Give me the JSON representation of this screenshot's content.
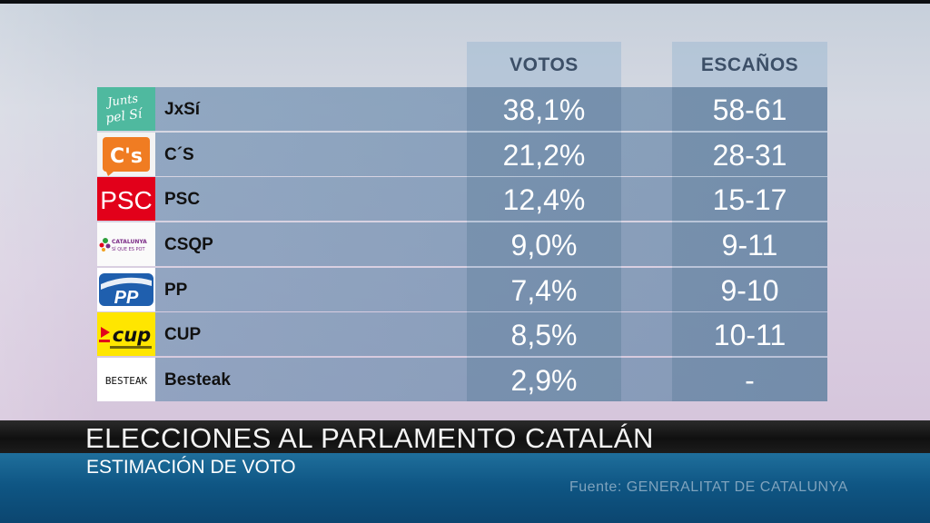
{
  "table": {
    "headers": {
      "votos": "VOTOS",
      "escanos": "ESCAÑOS"
    },
    "rows": [
      {
        "party": "JxSí",
        "votos": "38,1%",
        "escanos": "58-61",
        "logo": "junts-pel-si-logo"
      },
      {
        "party": "C´S",
        "votos": "21,2%",
        "escanos": "28-31",
        "logo": "ciudadanos-logo"
      },
      {
        "party": "PSC",
        "votos": "12,4%",
        "escanos": "15-17",
        "logo": "psc-logo"
      },
      {
        "party": "CSQP",
        "votos": "9,0%",
        "escanos": "9-11",
        "logo": "csqp-logo"
      },
      {
        "party": "PP",
        "votos": "7,4%",
        "escanos": "9-10",
        "logo": "pp-logo"
      },
      {
        "party": "CUP",
        "votos": "8,5%",
        "escanos": "10-11",
        "logo": "cup-logo"
      },
      {
        "party": "Besteak",
        "votos": "2,9%",
        "escanos": "-",
        "logo": "besteak-logo"
      }
    ]
  },
  "logos": {
    "jxsi_text": "Junts pel Sí",
    "cs_text": "C's",
    "psc_text": "PSC",
    "csqp_text": "CATALUNYA SÍ QUE ES POT",
    "pp_text": "PP",
    "cup_text": "cup",
    "besteak_text": "BESTEAK"
  },
  "lower_third": {
    "title": "ELECCIONES AL PARLAMENTO CATALÁN",
    "subtitle": "ESTIMACIÓN DE VOTO",
    "source": "Fuente: GENERALITAT DE CATALUNYA"
  },
  "colors": {
    "jxsi": "#4fb99f",
    "cs": "#f07c22",
    "psc": "#e2001a",
    "pp": "#1f5fae",
    "cup": "#ffe600",
    "header_text": "#3c4f67",
    "lower_third_blue": "#0f5684"
  }
}
